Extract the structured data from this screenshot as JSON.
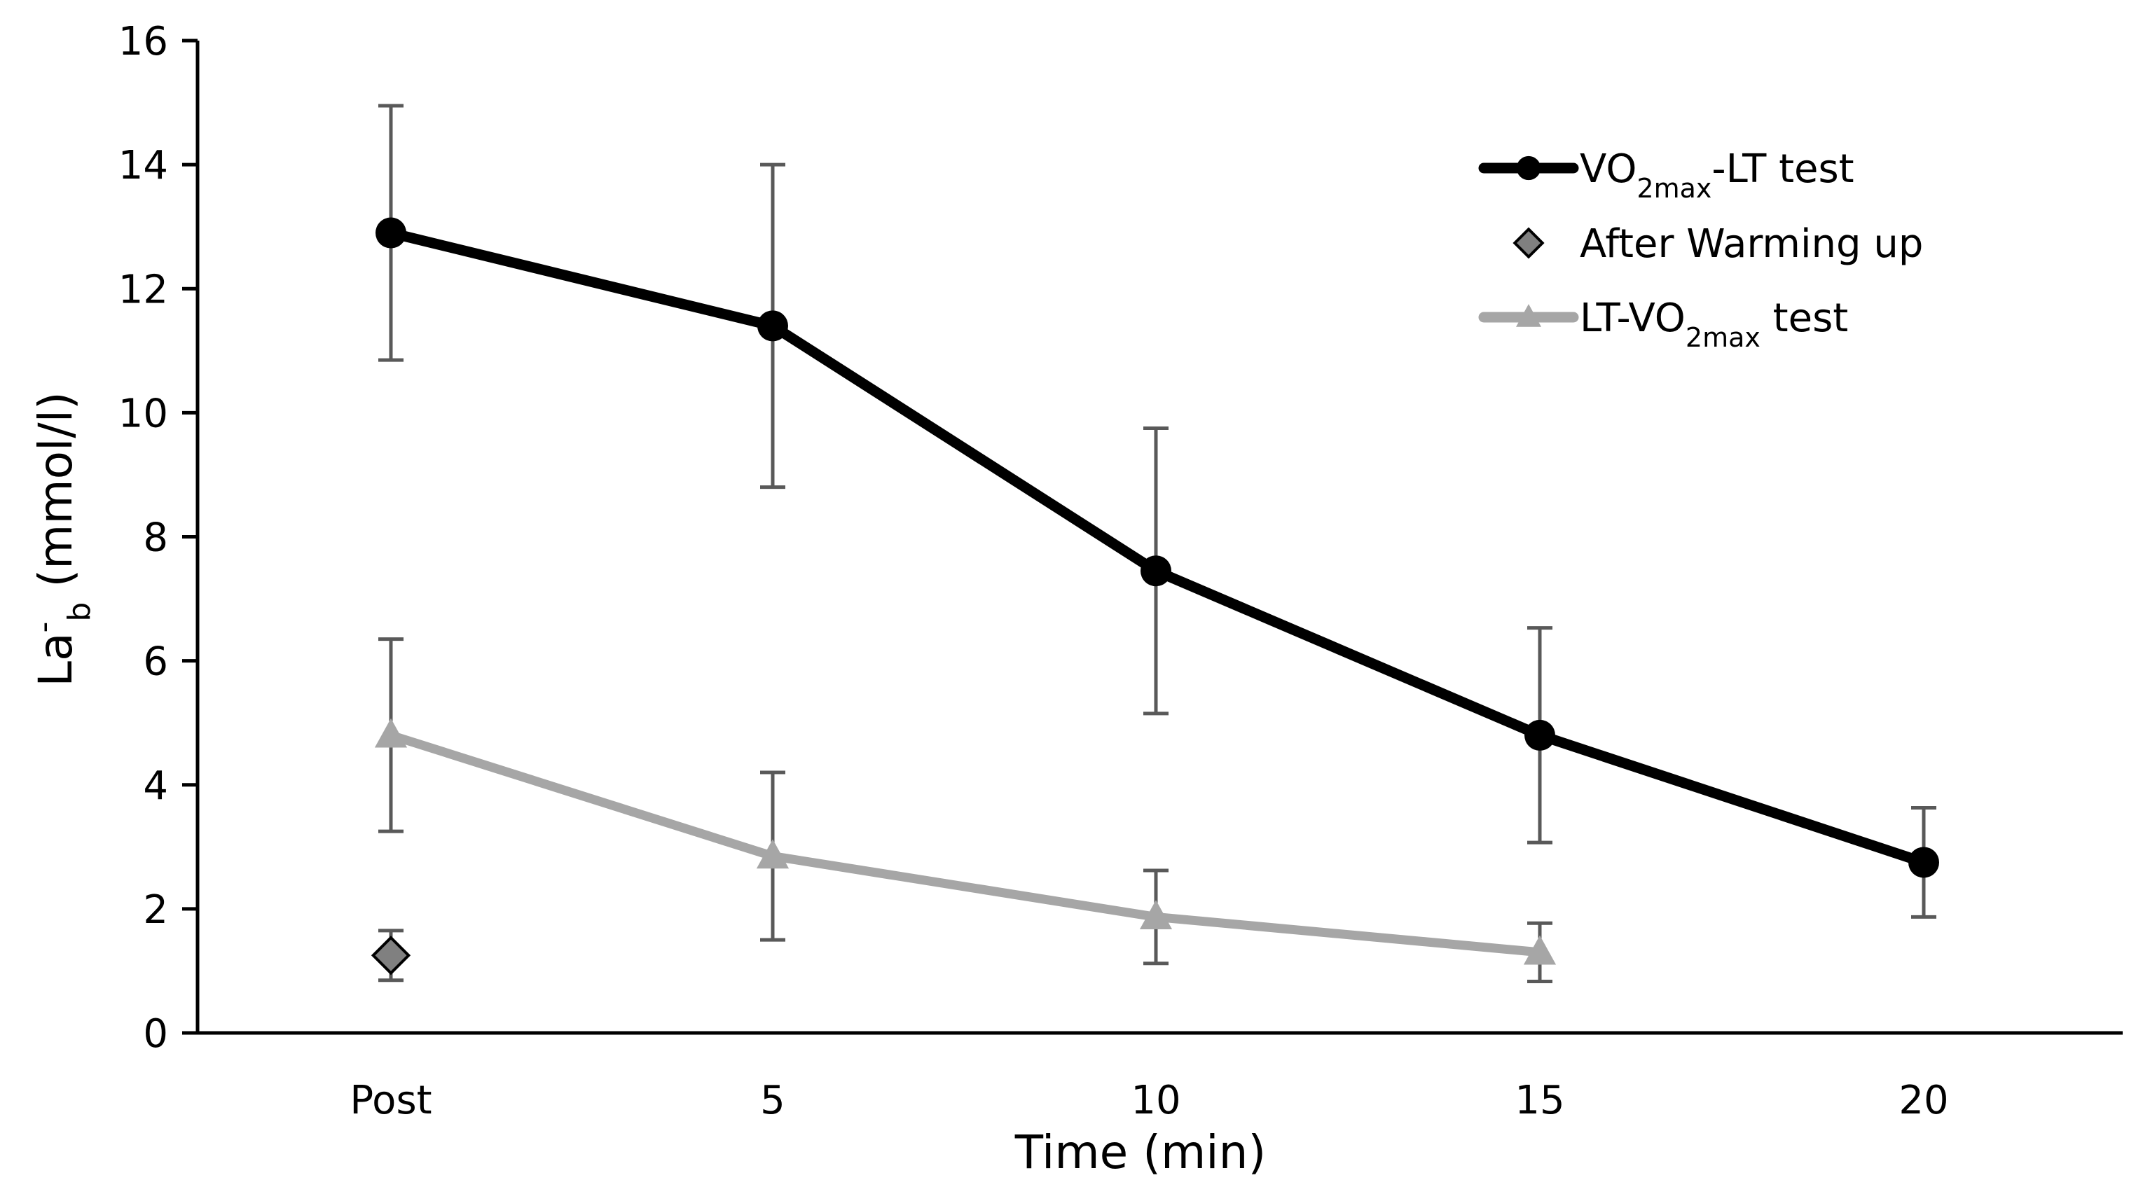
{
  "chart_data": {
    "type": "line",
    "title": "",
    "xlabel": "Time (min)",
    "ylabel_main": "La",
    "ylabel_sup": "-",
    "ylabel_sub": "b",
    "ylabel_units": " (mmol/l)",
    "categories": [
      "Post",
      "5",
      "10",
      "15",
      "20"
    ],
    "ylim": [
      0,
      16
    ],
    "yticks": [
      "0",
      "2",
      "4",
      "6",
      "8",
      "10",
      "12",
      "14",
      "16"
    ],
    "grid": false,
    "legend_position": "top-right",
    "series": [
      {
        "name": "VO2max-LT test",
        "label_pre": "VO",
        "label_sub": "2max",
        "label_post": "-LT test",
        "marker": "circle",
        "color": "#000000",
        "values": [
          12.9,
          11.4,
          7.45,
          4.8,
          2.75
        ],
        "errors": [
          2.05,
          2.6,
          2.3,
          1.73,
          0.88
        ]
      },
      {
        "name": "After Warming up",
        "label_pre": "After Warming up",
        "label_sub": "",
        "label_post": "",
        "marker": "diamond",
        "color": "#808080",
        "values": [
          1.25,
          null,
          null,
          null,
          null
        ],
        "errors": [
          0.4,
          null,
          null,
          null,
          null
        ]
      },
      {
        "name": "LT-VO2max test",
        "label_pre": "LT-VO",
        "label_sub": "2max",
        "label_post": " test",
        "marker": "triangle",
        "color": "#a6a6a6",
        "values": [
          4.8,
          2.85,
          1.87,
          1.3,
          null
        ],
        "errors": [
          1.55,
          1.35,
          0.75,
          0.47,
          null
        ]
      }
    ],
    "error_bar_color": "#595959"
  }
}
